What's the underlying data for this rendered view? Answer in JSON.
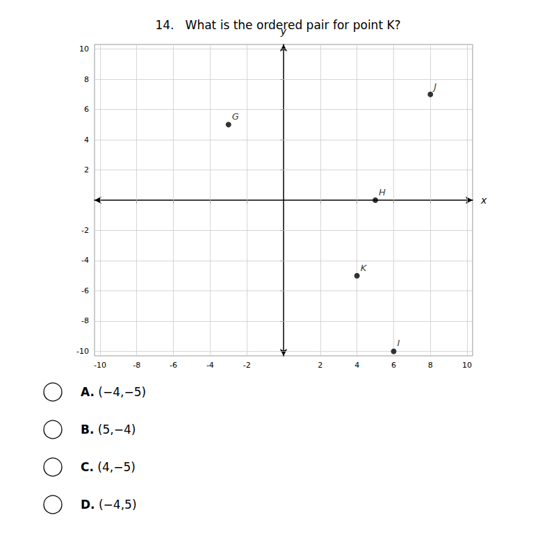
{
  "chart_data": {
    "type": "scatter",
    "title": "14.   What is the ordered pair for point K?",
    "x": [
      -3,
      8,
      5,
      4,
      6
    ],
    "values": [
      5,
      7,
      0,
      -5,
      -10
    ],
    "labels": [
      "G",
      "J",
      "H",
      "K",
      "I"
    ],
    "color": "#000000",
    "xlabel": "x",
    "ylabel": "y",
    "xlim": [
      -10.3,
      10.3
    ],
    "ylim": [
      -10.3,
      10.3
    ],
    "xticks": [
      -10,
      -8,
      -6,
      -4,
      -2,
      2,
      4,
      6,
      8,
      10
    ],
    "yticks": [
      -10,
      -8,
      -6,
      -4,
      -2,
      2,
      4,
      6,
      8,
      10
    ],
    "grid": true,
    "annotations": [
      "A. (−4,−5)",
      "B. (5,−4)",
      "C. (4,−5)",
      "D. (−4,5)"
    ]
  }
}
